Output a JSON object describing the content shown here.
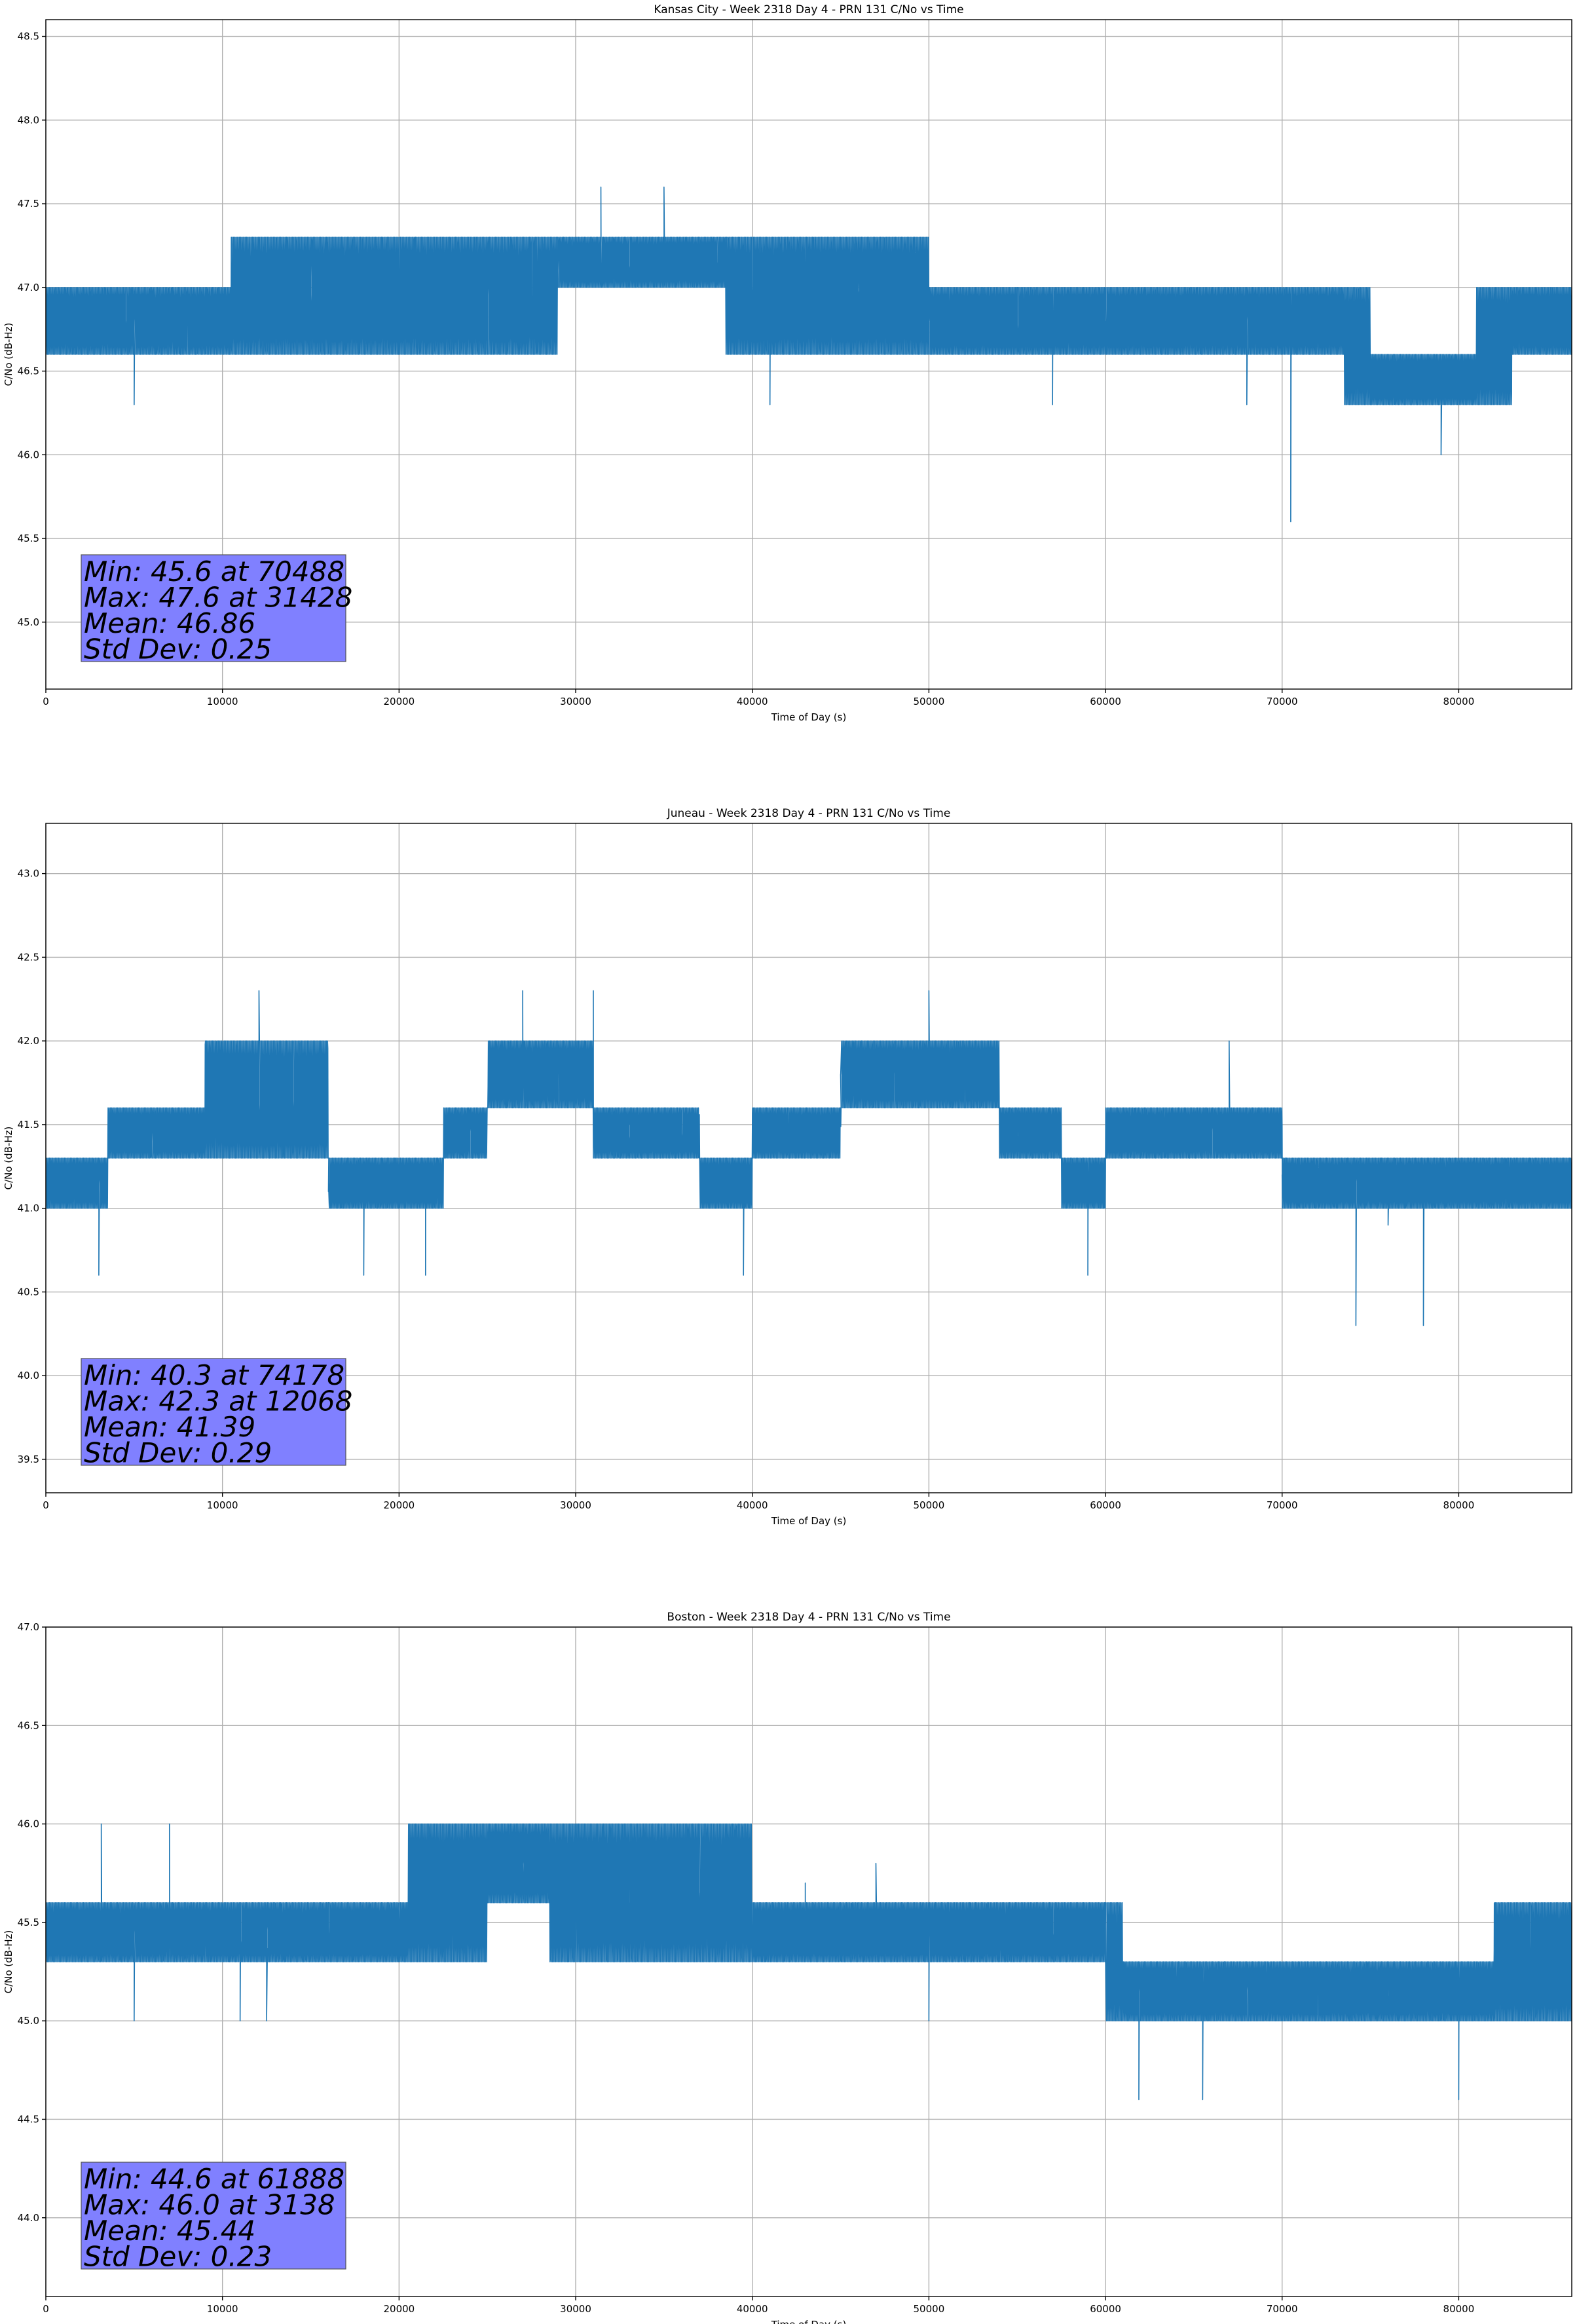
{
  "chart_data": [
    {
      "type": "line",
      "title": "Kansas City - Week 2318 Day 4 - PRN 131 C/No vs Time",
      "xlabel": "Time of Day (s)",
      "ylabel": "C/No (dB-Hz)",
      "xlim": [
        0,
        86400
      ],
      "ylim": [
        44.6,
        48.6
      ],
      "xticks": [
        0,
        10000,
        20000,
        30000,
        40000,
        50000,
        60000,
        70000,
        80000
      ],
      "yticks": [
        45.0,
        45.5,
        46.0,
        46.5,
        47.0,
        47.5,
        48.0,
        48.5
      ],
      "grid": true,
      "series": [
        {
          "color": "#1f77b4",
          "x": [
            0,
            4500,
            5000,
            8000,
            10500,
            15000,
            20000,
            25000,
            27500,
            29000,
            31428,
            33000,
            35000,
            38000,
            40000,
            41000,
            43000,
            46000,
            50000,
            55000,
            57000,
            60000,
            65000,
            68000,
            70488,
            72000,
            74000,
            76000,
            78000,
            79000,
            81000,
            83000,
            85000,
            86400
          ],
          "y": [
            46.8,
            46.8,
            46.3,
            46.8,
            46.9,
            47.0,
            46.8,
            46.9,
            46.8,
            47.1,
            47.6,
            47.1,
            47.6,
            47.1,
            47.0,
            46.3,
            46.9,
            47.0,
            46.8,
            47.0,
            46.3,
            46.8,
            46.8,
            46.3,
            45.6,
            46.8,
            46.5,
            46.3,
            46.4,
            46.0,
            46.4,
            46.8,
            46.8,
            46.8
          ],
          "band": [
            [
              0,
              46.6,
              47.0
            ],
            [
              10500,
              46.6,
              47.3
            ],
            [
              26000,
              46.6,
              47.3
            ],
            [
              29000,
              47.0,
              47.3
            ],
            [
              38500,
              46.6,
              47.3
            ],
            [
              50000,
              46.6,
              47.0
            ],
            [
              73500,
              46.3,
              47.0
            ],
            [
              75000,
              46.3,
              46.6
            ],
            [
              81000,
              46.3,
              47.0
            ],
            [
              83000,
              46.6,
              47.0
            ],
            [
              86400,
              46.6,
              47.0
            ]
          ]
        }
      ],
      "stats": {
        "min_text": "Min: 45.6 at 70488",
        "max_text": "Max: 47.6 at 31428",
        "mean_text": "Mean: 46.86",
        "std_text": "Std Dev: 0.25"
      }
    },
    {
      "type": "line",
      "title": "Juneau - Week 2318 Day 4 - PRN 131 C/No vs Time",
      "xlabel": "Time of Day (s)",
      "ylabel": "C/No (dB-Hz)",
      "xlim": [
        0,
        86400
      ],
      "ylim": [
        39.3,
        43.3
      ],
      "xticks": [
        0,
        10000,
        20000,
        30000,
        40000,
        50000,
        60000,
        70000,
        80000
      ],
      "yticks": [
        39.5,
        40.0,
        40.5,
        41.0,
        41.5,
        42.0,
        42.5,
        43.0
      ],
      "grid": true,
      "series": [
        {
          "color": "#1f77b4",
          "x": [
            0,
            3000,
            6000,
            10000,
            12068,
            14000,
            16000,
            18000,
            21500,
            24000,
            27000,
            29000,
            31000,
            33000,
            36000,
            39500,
            42000,
            45000,
            48000,
            50000,
            52000,
            55000,
            58000,
            59000,
            62000,
            66000,
            67000,
            70000,
            72000,
            74178,
            76000,
            78000,
            80000,
            83000,
            86400
          ],
          "y": [
            41.2,
            40.6,
            41.4,
            41.6,
            42.3,
            41.6,
            41.1,
            40.6,
            40.6,
            41.5,
            42.3,
            41.8,
            42.3,
            41.5,
            41.4,
            40.6,
            41.5,
            41.8,
            41.9,
            42.3,
            41.9,
            41.5,
            41.1,
            40.6,
            41.5,
            41.5,
            42.0,
            41.2,
            41.1,
            40.3,
            40.9,
            40.3,
            41.1,
            41.1,
            41.2
          ],
          "band": [
            [
              0,
              41.0,
              41.3
            ],
            [
              3500,
              41.3,
              41.6
            ],
            [
              9000,
              41.3,
              42.0
            ],
            [
              16000,
              41.0,
              41.3
            ],
            [
              22500,
              41.3,
              41.6
            ],
            [
              25000,
              41.6,
              42.0
            ],
            [
              31000,
              41.3,
              41.6
            ],
            [
              37000,
              41.0,
              41.3
            ],
            [
              40000,
              41.3,
              41.6
            ],
            [
              45000,
              41.6,
              42.0
            ],
            [
              54000,
              41.3,
              41.6
            ],
            [
              57500,
              41.0,
              41.3
            ],
            [
              60000,
              41.3,
              41.6
            ],
            [
              70000,
              41.0,
              41.3
            ],
            [
              86400,
              41.0,
              41.3
            ]
          ]
        }
      ],
      "stats": {
        "min_text": "Min: 40.3 at 74178",
        "max_text": "Max: 42.3 at 12068",
        "mean_text": "Mean: 41.39",
        "std_text": "Std Dev: 0.29"
      }
    },
    {
      "type": "line",
      "title": "Boston - Week 2318 Day 4 - PRN 131 C/No vs Time",
      "xlabel": "Time of Day (s)",
      "ylabel": "C/No (dB-Hz)",
      "xlim": [
        0,
        86400
      ],
      "ylim": [
        43.6,
        47.0
      ],
      "xticks": [
        0,
        10000,
        20000,
        30000,
        40000,
        50000,
        60000,
        70000,
        80000
      ],
      "yticks": [
        44.0,
        44.5,
        45.0,
        45.5,
        46.0,
        46.5,
        47.0
      ],
      "grid": true,
      "series": [
        {
          "color": "#1f77b4",
          "x": [
            0,
            3138,
            5000,
            7000,
            9000,
            11000,
            12500,
            16000,
            20000,
            23000,
            27000,
            30000,
            33000,
            37000,
            40000,
            43000,
            47000,
            50000,
            54000,
            57000,
            60000,
            61888,
            64000,
            65500,
            68000,
            72000,
            76000,
            80000,
            82000,
            84000,
            86400
          ],
          "y": [
            45.5,
            46.0,
            45.0,
            46.0,
            45.5,
            45.0,
            45.0,
            45.6,
            45.6,
            46.0,
            45.8,
            45.9,
            45.6,
            45.6,
            45.4,
            45.7,
            45.8,
            45.0,
            45.5,
            45.5,
            45.6,
            44.6,
            45.2,
            44.6,
            45.2,
            45.1,
            45.2,
            44.6,
            45.3,
            45.4,
            45.5
          ],
          "band": [
            [
              0,
              45.3,
              45.6
            ],
            [
              20500,
              45.3,
              46.0
            ],
            [
              25000,
              45.6,
              46.0
            ],
            [
              28500,
              45.3,
              46.0
            ],
            [
              40000,
              45.3,
              45.6
            ],
            [
              60000,
              45.0,
              45.6
            ],
            [
              61000,
              45.0,
              45.3
            ],
            [
              80000,
              45.0,
              45.3
            ],
            [
              82000,
              45.0,
              45.6
            ],
            [
              86400,
              45.0,
              45.6
            ]
          ]
        }
      ],
      "stats": {
        "min_text": "Min: 44.6 at 61888",
        "max_text": "Max: 46.0 at 3138",
        "mean_text": "Mean: 45.44",
        "std_text": "Std Dev: 0.23"
      }
    }
  ]
}
